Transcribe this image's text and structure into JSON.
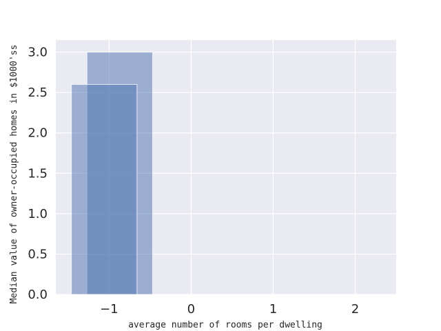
{
  "chart_data": {
    "type": "bar",
    "title": "",
    "xlabel": "average number of rooms per dwelling",
    "ylabel": "Median value of owner-occupied homes in $1000'ss",
    "xlim": [
      -1.65,
      2.5
    ],
    "ylim": [
      0,
      3.15
    ],
    "x_ticks": [
      -1,
      0,
      1,
      2
    ],
    "x_tick_labels": [
      "−1",
      "0",
      "1",
      "2"
    ],
    "y_ticks": [
      0.0,
      0.5,
      1.0,
      1.5,
      2.0,
      2.5,
      3.0
    ],
    "y_tick_labels": [
      "0.0",
      "0.5",
      "1.0",
      "1.5",
      "2.0",
      "2.5",
      "3.0"
    ],
    "grid": true,
    "bars": [
      {
        "x_start": -1.27,
        "x_end": -0.47,
        "value": 3.0
      },
      {
        "x_start": -1.46,
        "x_end": -0.66,
        "value": 2.6
      }
    ],
    "colors": {
      "background": "#eaeaf2",
      "grid": "#ffffff",
      "bar": "#4c72b0"
    }
  }
}
